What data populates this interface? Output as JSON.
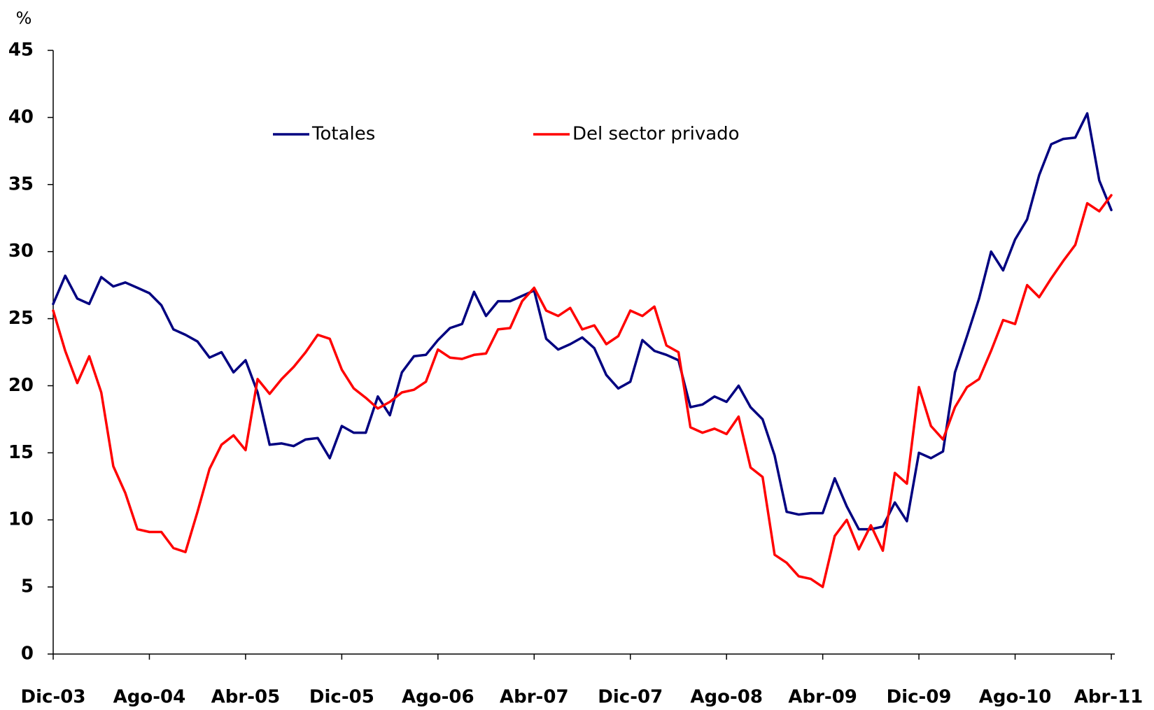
{
  "chart_data": {
    "type": "line",
    "y_label": "%",
    "categories": [
      "Dic-03",
      null,
      null,
      null,
      null,
      null,
      null,
      null,
      "Ago-04",
      null,
      null,
      null,
      null,
      null,
      null,
      null,
      "Abr-05",
      null,
      null,
      null,
      null,
      null,
      null,
      null,
      "Dic-05",
      null,
      null,
      null,
      null,
      null,
      null,
      null,
      "Ago-06",
      null,
      null,
      null,
      null,
      null,
      null,
      null,
      "Abr-07",
      null,
      null,
      null,
      null,
      null,
      null,
      null,
      "Dic-07",
      null,
      null,
      null,
      null,
      null,
      null,
      null,
      "Ago-08",
      null,
      null,
      null,
      null,
      null,
      null,
      null,
      "Abr-09",
      null,
      null,
      null,
      null,
      null,
      null,
      null,
      "Dic-09",
      null,
      null,
      null,
      null,
      null,
      null,
      null,
      "Ago-10",
      null,
      null,
      null,
      null,
      null,
      null,
      null,
      "Abr-11"
    ],
    "series": [
      {
        "name": "Totales",
        "color": "#000080",
        "values": [
          26.1,
          28.2,
          26.5,
          26.1,
          28.1,
          27.4,
          27.7,
          27.3,
          26.9,
          26.0,
          24.2,
          23.8,
          23.3,
          22.1,
          22.5,
          21.0,
          21.9,
          19.5,
          15.6,
          15.7,
          15.5,
          16.0,
          16.1,
          14.6,
          17.0,
          16.5,
          16.5,
          19.2,
          17.8,
          21.0,
          22.2,
          22.3,
          23.4,
          24.3,
          24.6,
          27.0,
          25.2,
          26.3,
          26.3,
          26.7,
          27.1,
          23.5,
          22.7,
          23.1,
          23.6,
          22.8,
          20.8,
          19.8,
          20.3,
          23.4,
          22.6,
          22.3,
          21.9,
          18.4,
          18.6,
          19.2,
          18.8,
          20.0,
          18.4,
          17.5,
          14.8,
          10.6,
          10.4,
          10.5,
          10.5,
          13.1,
          11.0,
          9.3,
          9.3,
          9.5,
          11.3,
          9.9,
          15.0,
          14.6,
          15.1,
          21.0,
          23.7,
          26.5,
          30.0,
          28.6,
          30.9,
          32.4,
          35.7,
          38.0,
          38.4,
          38.5,
          40.3,
          35.3,
          33.1
        ]
      },
      {
        "name": "Del sector privado",
        "color": "#ff0000",
        "values": [
          25.6,
          22.6,
          20.2,
          22.2,
          19.5,
          14.0,
          12.0,
          9.3,
          9.1,
          9.1,
          7.9,
          7.6,
          10.6,
          13.8,
          15.6,
          16.3,
          15.2,
          20.5,
          19.4,
          20.5,
          21.4,
          22.5,
          23.8,
          23.5,
          21.2,
          19.8,
          19.1,
          18.3,
          18.8,
          19.5,
          19.7,
          20.3,
          22.7,
          22.1,
          22.0,
          22.3,
          22.4,
          24.2,
          24.3,
          26.3,
          27.3,
          25.6,
          25.2,
          25.8,
          24.2,
          24.5,
          23.1,
          23.7,
          25.6,
          25.2,
          25.9,
          23.0,
          22.5,
          16.9,
          16.5,
          16.8,
          16.4,
          17.7,
          13.9,
          13.2,
          7.4,
          6.8,
          5.8,
          5.6,
          5.0,
          8.8,
          10.0,
          7.8,
          9.6,
          7.7,
          13.5,
          12.7,
          19.9,
          17.0,
          16.0,
          18.4,
          19.9,
          20.5,
          22.6,
          24.9,
          24.6,
          27.5,
          26.6,
          28.0,
          29.3,
          30.5,
          33.6,
          33.0,
          34.2
        ]
      }
    ],
    "ylim": [
      0,
      45
    ],
    "yticks": [
      0,
      5,
      10,
      15,
      20,
      25,
      30,
      35,
      40,
      45
    ],
    "legend": "upper-center"
  }
}
